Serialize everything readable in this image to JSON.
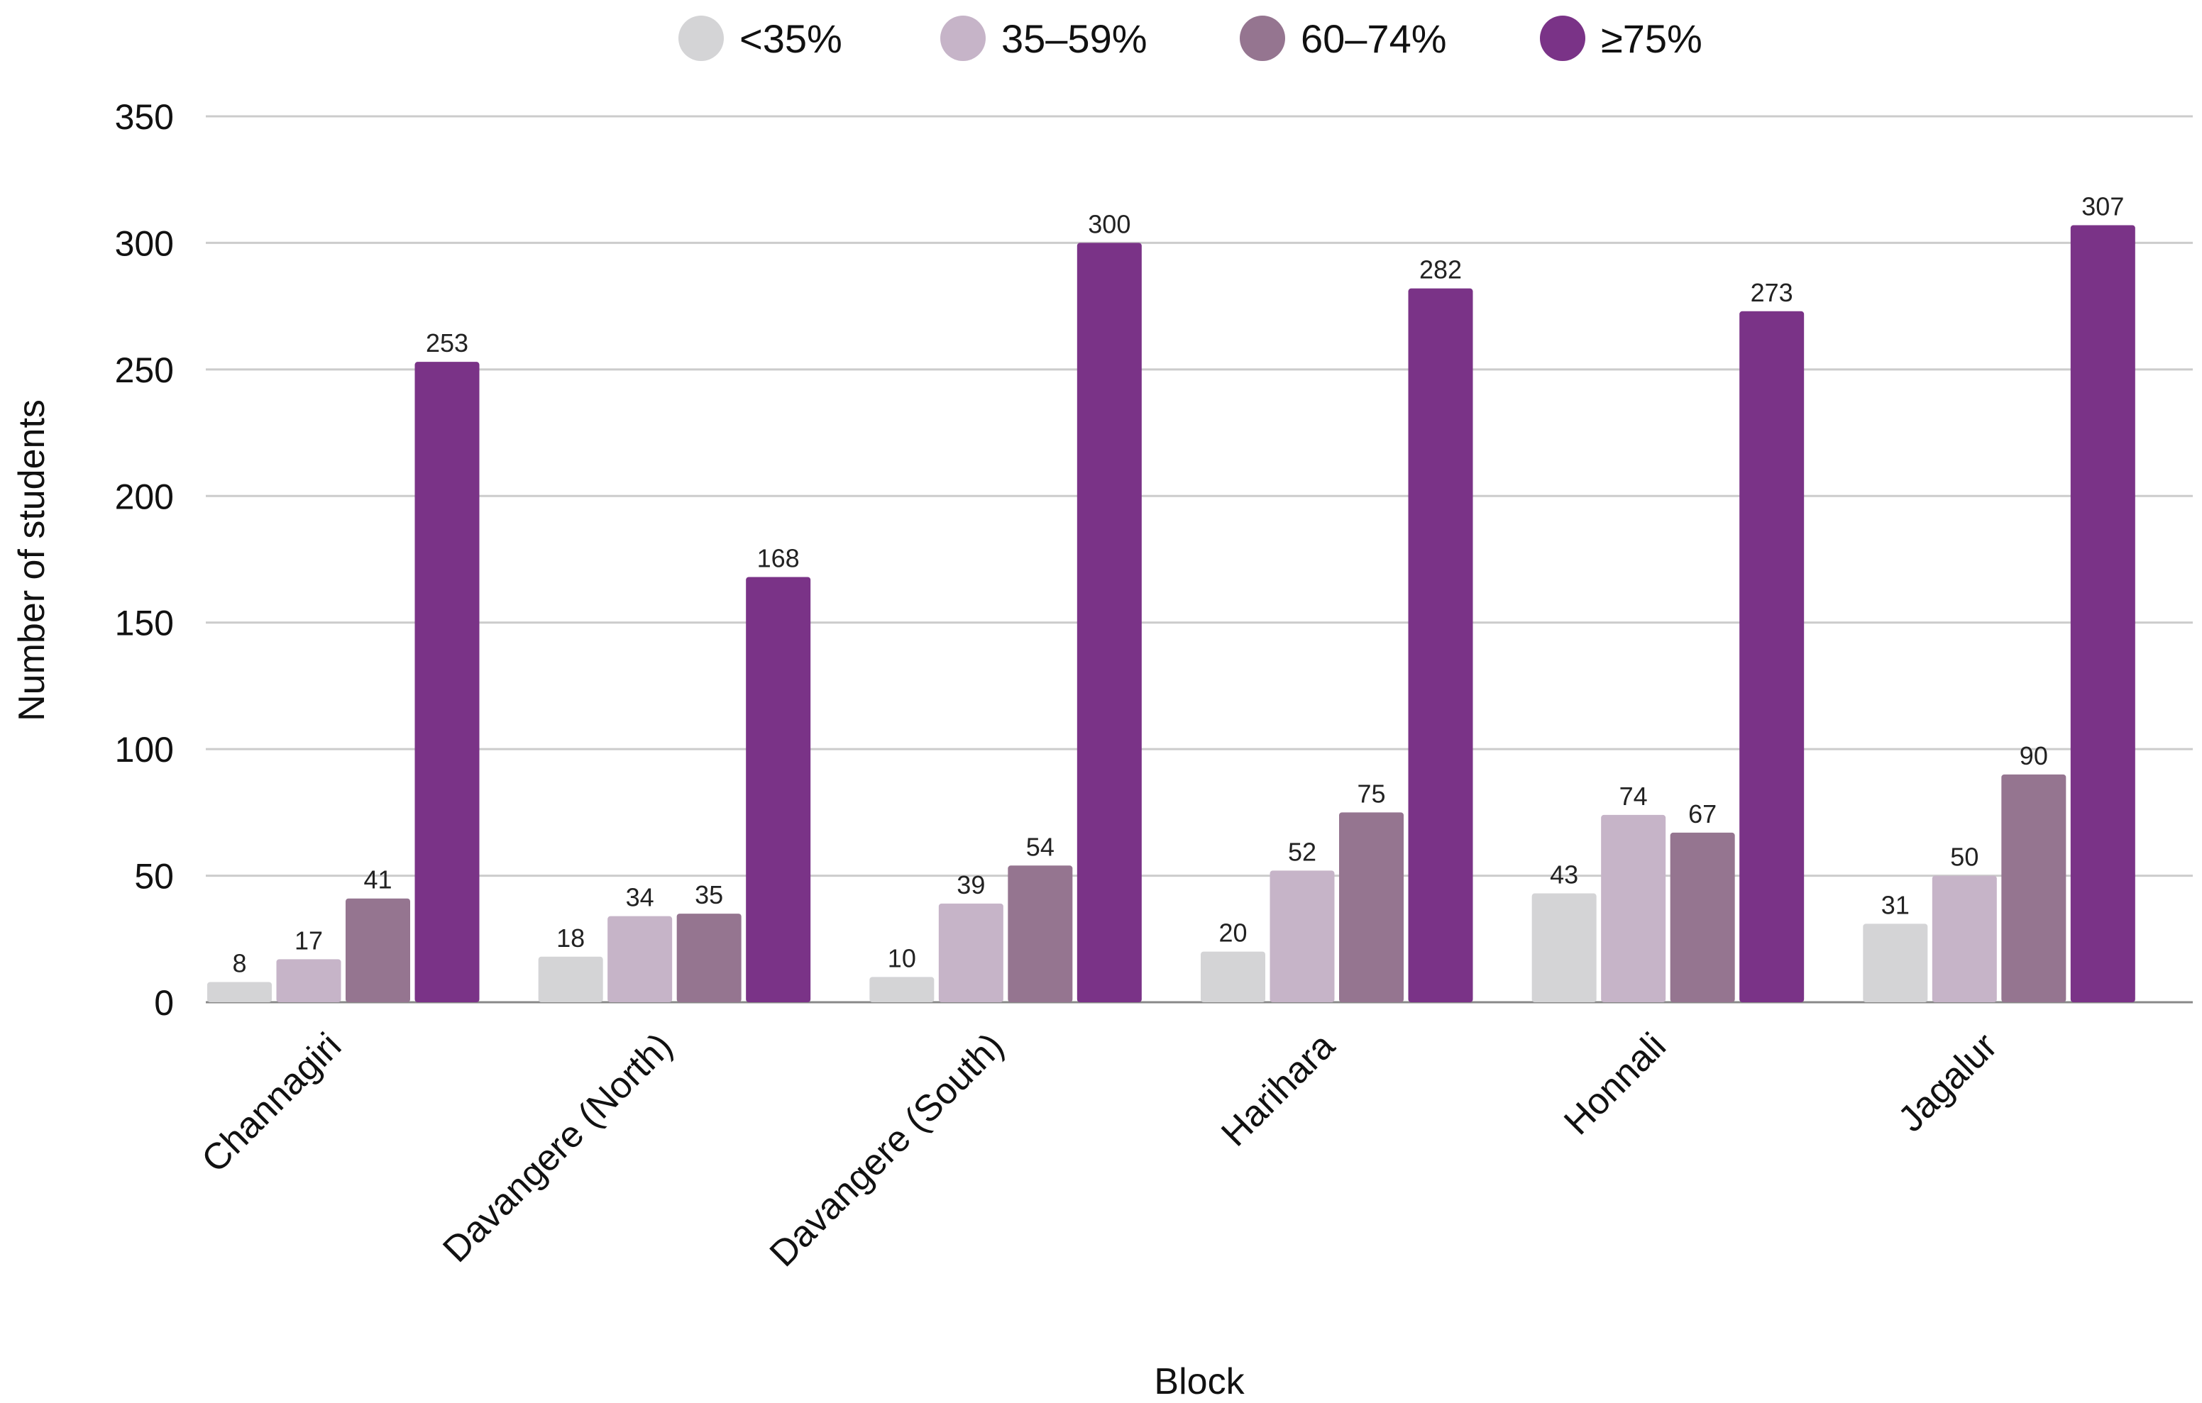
{
  "chart_data": {
    "type": "bar",
    "xlabel": "Block",
    "ylabel": "Number of students",
    "ylim": [
      0,
      350
    ],
    "yticks": [
      0,
      50,
      100,
      150,
      200,
      250,
      300,
      350
    ],
    "grid": true,
    "legend_position": "top-center",
    "categories": [
      "Channagiri",
      "Davangere (North)",
      "Davangere (South)",
      "Harihara",
      "Honnali",
      "Jagalur"
    ],
    "series": [
      {
        "name": "<35%",
        "color": "#d4d4d6",
        "values": [
          8,
          18,
          10,
          20,
          43,
          31
        ]
      },
      {
        "name": "35–59%",
        "color": "#c6b4c8",
        "values": [
          17,
          34,
          39,
          52,
          74,
          50
        ]
      },
      {
        "name": "60–74%",
        "color": "#957590",
        "values": [
          41,
          35,
          54,
          75,
          67,
          90
        ]
      },
      {
        "name": "≥75%",
        "color": "#7a3387",
        "values": [
          253,
          168,
          300,
          282,
          273,
          307
        ]
      }
    ]
  }
}
